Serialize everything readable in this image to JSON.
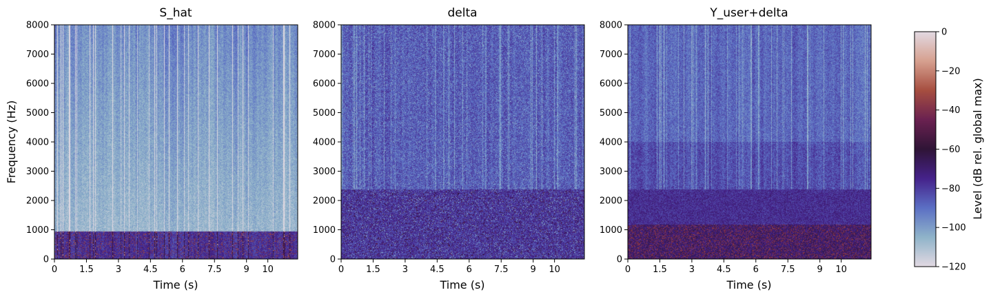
{
  "chart_data": {
    "type": "heatmap",
    "panels": [
      {
        "title": "S_hat",
        "xlabel": "Time (s)",
        "ylabel": "Frequency (Hz)",
        "profile": "s_hat"
      },
      {
        "title": "delta",
        "xlabel": "Time (s)",
        "ylabel": "",
        "profile": "delta"
      },
      {
        "title": "Y_user+delta",
        "xlabel": "Time (s)",
        "ylabel": "",
        "profile": "yuser"
      }
    ],
    "xlim": [
      0,
      11.4
    ],
    "xticks": [
      0,
      1.5,
      3,
      4.5,
      6,
      7.5,
      9,
      10
    ],
    "xtick_labels": [
      "0",
      "1.5",
      "3",
      "4.5",
      "6",
      "7.5",
      "9",
      "10"
    ],
    "ylim": [
      0,
      8000
    ],
    "yticks": [
      0,
      1000,
      2000,
      3000,
      4000,
      5000,
      6000,
      7000,
      8000
    ],
    "ytick_labels": [
      "0",
      "1000",
      "2000",
      "3000",
      "4000",
      "5000",
      "6000",
      "7000",
      "8000"
    ],
    "colorbar": {
      "label": "Level (dB rel. global max)",
      "range": [
        -120,
        0
      ],
      "ticks": [
        0,
        -20,
        -40,
        -60,
        -80,
        -100,
        -120
      ],
      "tick_labels": [
        "0",
        "−20",
        "−40",
        "−60",
        "−80",
        "−100",
        "−120"
      ],
      "colormap": "twilight_shifted",
      "colors": [
        "#e2d9e2",
        "#8fb3c9",
        "#5b6fc4",
        "#45228a",
        "#2f1436",
        "#6a2150",
        "#a64e40",
        "#d6a08f",
        "#e2d9e2"
      ]
    }
  }
}
